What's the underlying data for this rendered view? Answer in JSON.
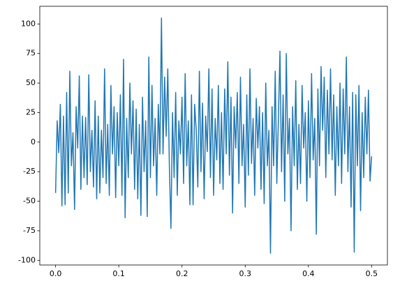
{
  "chart_data": {
    "type": "line",
    "color": "#1f77b4",
    "xlim": [
      -0.025,
      0.525
    ],
    "ylim": [
      -103.95,
      114.95
    ],
    "xticks": [
      {
        "value": 0,
        "label": "0.0"
      },
      0.1,
      0.2,
      0.3,
      0.4,
      0.5
    ],
    "yticks": [
      -100,
      -75,
      -50,
      -25,
      0,
      25,
      50,
      75,
      100
    ],
    "x": [
      0,
      0.0025,
      0.005,
      0.0075,
      0.01,
      0.0125,
      0.015,
      0.0175,
      0.02,
      0.0225,
      0.025,
      0.0275,
      0.03,
      0.0325,
      0.035,
      0.0375,
      0.04,
      0.0425,
      0.045,
      0.0475,
      0.05,
      0.0525,
      0.055,
      0.0575,
      0.06,
      0.0625,
      0.065,
      0.0675,
      0.07,
      0.0725,
      0.075,
      0.0775,
      0.08,
      0.0825,
      0.085,
      0.0875,
      0.09,
      0.0925,
      0.095,
      0.0975,
      0.1,
      0.1025,
      0.105,
      0.1075,
      0.11,
      0.1125,
      0.115,
      0.1175,
      0.12,
      0.1225,
      0.125,
      0.1275,
      0.13,
      0.1325,
      0.135,
      0.1375,
      0.14,
      0.1425,
      0.145,
      0.1475,
      0.15,
      0.1525,
      0.155,
      0.1575,
      0.16,
      0.1625,
      0.165,
      0.1675,
      0.17,
      0.1725,
      0.175,
      0.1775,
      0.18,
      0.1825,
      0.185,
      0.1875,
      0.19,
      0.1925,
      0.195,
      0.1975,
      0.2,
      0.2025,
      0.205,
      0.2075,
      0.21,
      0.2125,
      0.215,
      0.2175,
      0.22,
      0.2225,
      0.225,
      0.2275,
      0.23,
      0.2325,
      0.235,
      0.2375,
      0.24,
      0.2425,
      0.245,
      0.2475,
      0.25,
      0.2525,
      0.255,
      0.2575,
      0.26,
      0.2625,
      0.265,
      0.2675,
      0.27,
      0.2725,
      0.275,
      0.2775,
      0.28,
      0.2825,
      0.285,
      0.2875,
      0.29,
      0.2925,
      0.295,
      0.2975,
      0.3,
      0.3025,
      0.305,
      0.3075,
      0.31,
      0.3125,
      0.315,
      0.3175,
      0.32,
      0.3225,
      0.325,
      0.3275,
      0.33,
      0.3325,
      0.335,
      0.3375,
      0.34,
      0.3425,
      0.345,
      0.3475,
      0.35,
      0.3525,
      0.355,
      0.3575,
      0.36,
      0.3625,
      0.365,
      0.3675,
      0.37,
      0.3725,
      0.375,
      0.3775,
      0.38,
      0.3825,
      0.385,
      0.3875,
      0.39,
      0.3925,
      0.395,
      0.3975,
      0.4,
      0.4025,
      0.405,
      0.4075,
      0.41,
      0.4125,
      0.415,
      0.4175,
      0.42,
      0.4225,
      0.425,
      0.4275,
      0.43,
      0.4325,
      0.435,
      0.4375,
      0.44,
      0.4425,
      0.445,
      0.4475,
      0.45,
      0.4525,
      0.455,
      0.4575,
      0.46,
      0.4625,
      0.465,
      0.4675,
      0.47,
      0.4725,
      0.475,
      0.4775,
      0.48,
      0.4825,
      0.485,
      0.4875,
      0.49,
      0.4925,
      0.495,
      0.4975,
      0.5
    ],
    "values": [
      -43,
      18,
      -9,
      32,
      -54,
      22,
      -53,
      42,
      -43,
      60,
      -20,
      8,
      -57,
      30,
      -5,
      56,
      -40,
      22,
      -30,
      21,
      -36,
      57,
      -25,
      10,
      -38,
      35,
      -48,
      22,
      -43,
      10,
      -30,
      62,
      -35,
      15,
      -45,
      48,
      -10,
      30,
      -47,
      25,
      -20,
      40,
      -45,
      70,
      -64,
      20,
      -30,
      50,
      -10,
      35,
      -40,
      28,
      -48,
      15,
      -62,
      38,
      -25,
      18,
      -63,
      72,
      -30,
      48,
      -20,
      20,
      -45,
      32,
      -10,
      105,
      -10,
      55,
      5,
      62,
      -20,
      -73,
      25,
      -30,
      42,
      -45,
      18,
      -10,
      38,
      -35,
      58,
      -20,
      18,
      -53,
      40,
      -53,
      32,
      10,
      -38,
      60,
      -25,
      33,
      -48,
      22,
      -8,
      62,
      -30,
      45,
      -45,
      20,
      -15,
      48,
      -35,
      25,
      -40,
      45,
      -10,
      68,
      -28,
      38,
      -60,
      30,
      -5,
      42,
      -35,
      55,
      -20,
      15,
      -55,
      40,
      -28,
      62,
      -18,
      20,
      -45,
      37,
      -5,
      30,
      -40,
      25,
      -52,
      50,
      -20,
      10,
      -94,
      30,
      -20,
      60,
      -35,
      20,
      77,
      -25,
      40,
      -50,
      75,
      -10,
      20,
      -75,
      30,
      -20,
      52,
      -40,
      15,
      -35,
      48,
      -5,
      25,
      -50,
      35,
      -30,
      58,
      -15,
      20,
      -78,
      45,
      -20,
      64,
      10,
      55,
      -30,
      44,
      -10,
      62,
      -15,
      40,
      -45,
      30,
      -20,
      50,
      -35,
      45,
      -10,
      72,
      -25,
      30,
      -55,
      42,
      -93,
      40,
      -20,
      48,
      -58,
      25,
      -30,
      38,
      -10,
      44,
      -33,
      -12
    ]
  }
}
